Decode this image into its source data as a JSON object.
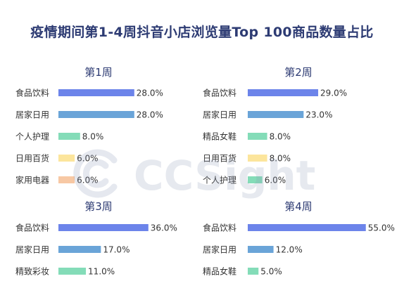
{
  "title": "疫情期间第1-4周抖音小店浏览量Top 100商品数量占比",
  "watermark": {
    "text": "CCSight"
  },
  "colors": {
    "食品饮料": "#6c84ea",
    "居家日用": "#6aa4d8",
    "个人护理": "#84dcb8",
    "精品女鞋": "#84dcb8",
    "日用百货": "#fce59c",
    "家用电器": "#f7c8a4",
    "精致彩妆": "#84dcb8",
    "title": "#2d3b73"
  },
  "chart_data": [
    {
      "type": "bar",
      "title": "第1周",
      "categories": [
        "食品饮料",
        "居家日用",
        "个人护理",
        "日用百货",
        "家用电器"
      ],
      "values": [
        28.0,
        28.0,
        8.0,
        6.0,
        6.0
      ],
      "value_labels": [
        "28.0%",
        "28.0%",
        "8.0%",
        "6.0%",
        "6.0%"
      ]
    },
    {
      "type": "bar",
      "title": "第2周",
      "categories": [
        "食品饮料",
        "居家日用",
        "精品女鞋",
        "日用百货",
        "个人护理"
      ],
      "values": [
        29.0,
        23.0,
        8.0,
        8.0,
        6.0
      ],
      "value_labels": [
        "29.0%",
        "23.0%",
        "8.0%",
        "8.0%",
        "6.0%"
      ]
    },
    {
      "type": "bar",
      "title": "第3周",
      "categories": [
        "食品饮料",
        "居家日用",
        "精致彩妆"
      ],
      "values": [
        36.0,
        17.0,
        11.0
      ],
      "value_labels": [
        "36.0%",
        "17.0%",
        "11.0%"
      ]
    },
    {
      "type": "bar",
      "title": "第4周",
      "categories": [
        "食品饮料",
        "居家日用",
        "精品女鞋"
      ],
      "values": [
        55.0,
        12.0,
        5.0
      ],
      "value_labels": [
        "55.0%",
        "12.0%",
        "5.0%"
      ]
    }
  ]
}
